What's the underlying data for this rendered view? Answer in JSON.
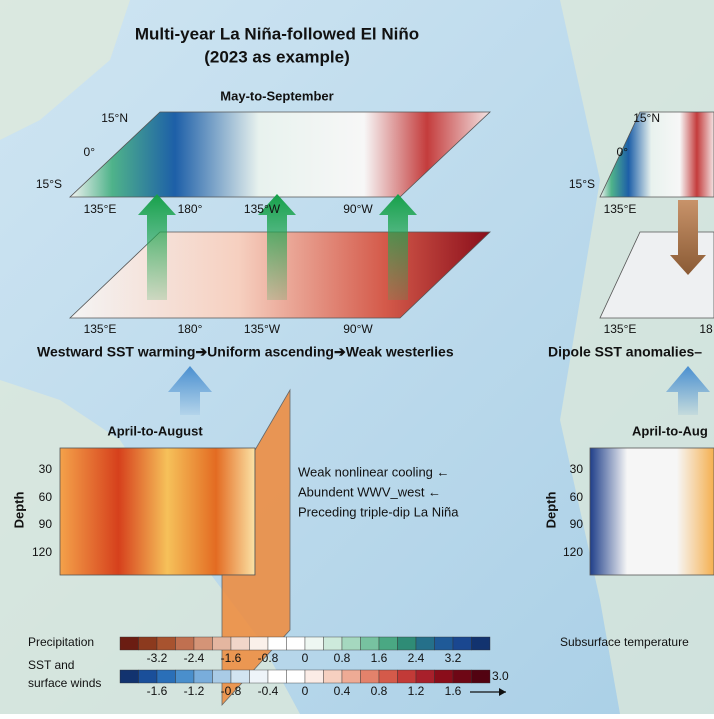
{
  "header": {
    "title": "Multi-year La Niña-followed El Niño",
    "subtitle": "(2023 as example)"
  },
  "left": {
    "season_top": "May-to-September",
    "lat_labels": [
      "15°N",
      "0°",
      "15°S"
    ],
    "lon_labels_top": [
      "135°E",
      "180°",
      "135°W",
      "90°W"
    ],
    "lon_labels_bottom": [
      "135°E",
      "180°",
      "135°W",
      "90°W"
    ],
    "mechanism": "Westward SST warming➔Uniform ascending➔Weak westerlies",
    "season_sub": "April-to-August",
    "depth_label": "Depth",
    "depth_ticks": [
      30,
      60,
      90,
      120
    ],
    "notes": [
      "Weak nonlinear cooling ←",
      "Abundent WWV_west ←",
      "Preceding triple-dip La Niña"
    ]
  },
  "right": {
    "lat_labels": [
      "15°N",
      "0°",
      "15°S"
    ],
    "lon_label_top": "135°E",
    "lon_labels_bottom": [
      "135°E",
      "18"
    ],
    "mechanism": "Dipole SST anomalies–",
    "season_sub": "April-to-Aug",
    "depth_label": "Depth",
    "depth_ticks": [
      30,
      60,
      90,
      120
    ]
  },
  "legend": {
    "precip_label": "Precipitation",
    "precip_ticks": [
      "-3.2",
      "-2.4",
      "-1.6",
      "-0.8",
      "0",
      "0.8",
      "1.6",
      "2.4",
      "3.2"
    ],
    "sst_label": [
      "SST and",
      "surface winds"
    ],
    "sst_ticks": [
      "-1.6",
      "-1.2",
      "-0.8",
      "-0.4",
      "0",
      "0.4",
      "0.8",
      "1.2",
      "1.6"
    ],
    "wind_ref": "3.0",
    "subsurface_label": "Subsurface temperature"
  }
}
